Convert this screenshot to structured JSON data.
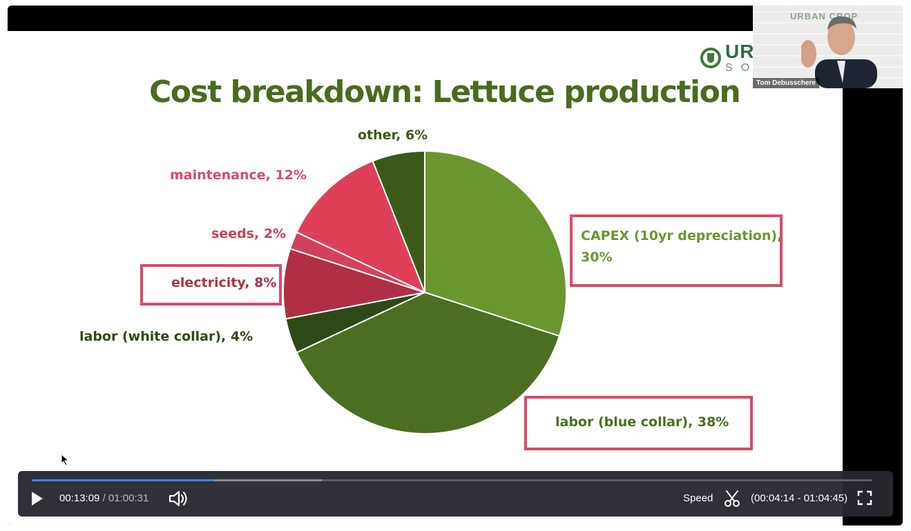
{
  "slide": {
    "title": "Cost breakdown: Lettuce production",
    "brand": {
      "line1": "URB",
      "line2": "SO"
    }
  },
  "chart_data": {
    "type": "pie",
    "title": "Cost breakdown: Lettuce production",
    "slices": [
      {
        "label": "CAPEX (10yr depreciation), 30%",
        "label_line1": "CAPEX (10yr depreciation),",
        "label_line2": "30%",
        "value": 30,
        "color": "#6a962f",
        "boxed": true
      },
      {
        "label": "labor (blue collar), 38%",
        "value": 38,
        "color": "#4b6e22",
        "boxed": true
      },
      {
        "label": "labor (white collar), 4%",
        "value": 4,
        "color": "#2d4a16",
        "boxed": false
      },
      {
        "label": "electricity, 8%",
        "value": 8,
        "color": "#b12f45",
        "boxed": true
      },
      {
        "label": "seeds, 2%",
        "value": 2,
        "color": "#d4415a",
        "boxed": false
      },
      {
        "label": "maintenance, 12%",
        "value": 12,
        "color": "#df4058",
        "boxed": false
      },
      {
        "label": "other, 6%",
        "value": 6,
        "color": "#3b5a18",
        "boxed": false
      }
    ]
  },
  "webcam": {
    "name": "Tom Debusschere",
    "logo_text": "URBAN CROP"
  },
  "player": {
    "current_time": "00:13:09",
    "separator": "/",
    "total_time": "01:00:31",
    "speed_label": "Speed",
    "clip_range": "(00:04:14 - 01:04:45)",
    "progress_fraction": 0.217,
    "buffered_fraction": 0.345
  }
}
